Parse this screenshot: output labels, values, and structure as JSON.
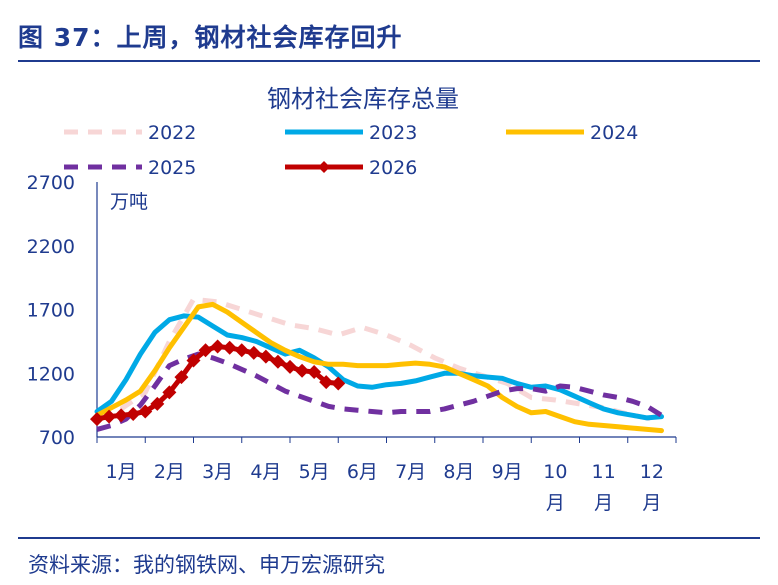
{
  "figure": {
    "title": "图 37：上周，钢材社会库存回升",
    "source": "资料来源：我的钢铁网、申万宏源研究"
  },
  "chart_data": {
    "type": "line",
    "title": "钢材社会库存总量",
    "unit": "万吨",
    "xlabel": "",
    "ylabel": "",
    "ylim": [
      700,
      2700
    ],
    "yticks": [
      "2700",
      "2200",
      "1700",
      "1200",
      "700"
    ],
    "xticks": [
      "1月",
      "2月",
      "3月",
      "4月",
      "5月",
      "6月",
      "7月",
      "8月",
      "9月",
      "10\n月",
      "11\n月",
      "12\n月"
    ],
    "grid": false,
    "legend_position": "top",
    "series": [
      {
        "name": "2022",
        "color": "#f7d6d6",
        "style": "dashed",
        "x": [
          1.0,
          1.5,
          2.0,
          2.5,
          3.0,
          3.5,
          4.0,
          4.5,
          5.0,
          5.5,
          6.0,
          6.5,
          7.0,
          7.5,
          8.0,
          8.5,
          9.0,
          9.5,
          10.0,
          10.5,
          11.0,
          11.5,
          12.0,
          12.5
        ],
        "values": [
          880,
          920,
          1050,
          1450,
          1780,
          1760,
          1700,
          1640,
          1580,
          1550,
          1500,
          1560,
          1500,
          1420,
          1320,
          1240,
          1180,
          1120,
          1010,
          990,
          960,
          930,
          880,
          840
        ]
      },
      {
        "name": "2023",
        "color": "#00a9e6",
        "style": "solid",
        "x": [
          1.0,
          1.3,
          1.6,
          1.9,
          2.2,
          2.5,
          2.8,
          3.1,
          3.4,
          3.7,
          4.0,
          4.3,
          4.6,
          4.9,
          5.2,
          5.5,
          5.8,
          6.1,
          6.4,
          6.7,
          7.0,
          7.3,
          7.6,
          7.9,
          8.2,
          8.5,
          8.8,
          9.1,
          9.4,
          9.7,
          10.0,
          10.3,
          10.6,
          10.9,
          11.2,
          11.5,
          11.8,
          12.1,
          12.4,
          12.7
        ],
        "values": [
          900,
          980,
          1150,
          1350,
          1520,
          1620,
          1650,
          1640,
          1570,
          1500,
          1480,
          1450,
          1400,
          1350,
          1380,
          1320,
          1250,
          1150,
          1100,
          1090,
          1110,
          1120,
          1140,
          1170,
          1200,
          1200,
          1180,
          1170,
          1160,
          1120,
          1090,
          1100,
          1070,
          1020,
          970,
          920,
          890,
          870,
          850,
          860
        ]
      },
      {
        "name": "2024",
        "color": "#ffc000",
        "style": "solid",
        "x": [
          1.0,
          1.3,
          1.6,
          1.9,
          2.2,
          2.5,
          2.8,
          3.1,
          3.4,
          3.7,
          4.0,
          4.3,
          4.6,
          4.9,
          5.2,
          5.5,
          5.8,
          6.1,
          6.4,
          6.7,
          7.0,
          7.3,
          7.6,
          7.9,
          8.2,
          8.5,
          8.8,
          9.1,
          9.4,
          9.7,
          10.0,
          10.3,
          10.6,
          10.9,
          11.2,
          11.5,
          11.8,
          12.1,
          12.4,
          12.7
        ],
        "values": [
          870,
          930,
          990,
          1060,
          1220,
          1400,
          1560,
          1720,
          1740,
          1680,
          1600,
          1520,
          1440,
          1380,
          1330,
          1290,
          1270,
          1270,
          1260,
          1260,
          1260,
          1270,
          1280,
          1270,
          1250,
          1200,
          1150,
          1100,
          1010,
          940,
          890,
          900,
          860,
          820,
          800,
          790,
          780,
          770,
          760,
          750
        ]
      },
      {
        "name": "2025",
        "color": "#7030a0",
        "style": "dashed",
        "x": [
          1.0,
          1.3,
          1.6,
          1.9,
          2.2,
          2.5,
          2.8,
          3.1,
          3.4,
          3.7,
          4.0,
          4.3,
          4.6,
          4.9,
          5.2,
          5.5,
          5.8,
          6.1,
          6.4,
          6.7,
          7.0,
          7.3,
          7.6,
          7.9,
          8.2,
          8.5,
          8.8,
          9.1,
          9.4,
          9.7,
          10.0,
          10.3,
          10.6,
          10.9,
          11.2,
          11.5,
          11.8,
          12.1,
          12.4,
          12.7
        ],
        "values": [
          760,
          790,
          840,
          950,
          1100,
          1260,
          1310,
          1350,
          1320,
          1280,
          1230,
          1180,
          1120,
          1060,
          1020,
          980,
          940,
          920,
          910,
          900,
          890,
          900,
          900,
          900,
          920,
          950,
          980,
          1020,
          1060,
          1080,
          1080,
          1060,
          1100,
          1090,
          1060,
          1030,
          1010,
          980,
          940,
          870
        ]
      },
      {
        "name": "2026",
        "color": "#c00000",
        "style": "solid-diamond",
        "x": [
          1.0,
          1.25,
          1.5,
          1.75,
          2.0,
          2.25,
          2.5,
          2.75,
          3.0,
          3.25,
          3.5,
          3.75,
          4.0,
          4.25,
          4.5,
          4.75,
          5.0,
          5.25,
          5.5,
          5.75,
          6.0
        ],
        "values": [
          840,
          860,
          870,
          880,
          900,
          960,
          1050,
          1170,
          1300,
          1380,
          1410,
          1400,
          1380,
          1360,
          1330,
          1290,
          1250,
          1220,
          1210,
          1130,
          1120
        ]
      }
    ]
  }
}
